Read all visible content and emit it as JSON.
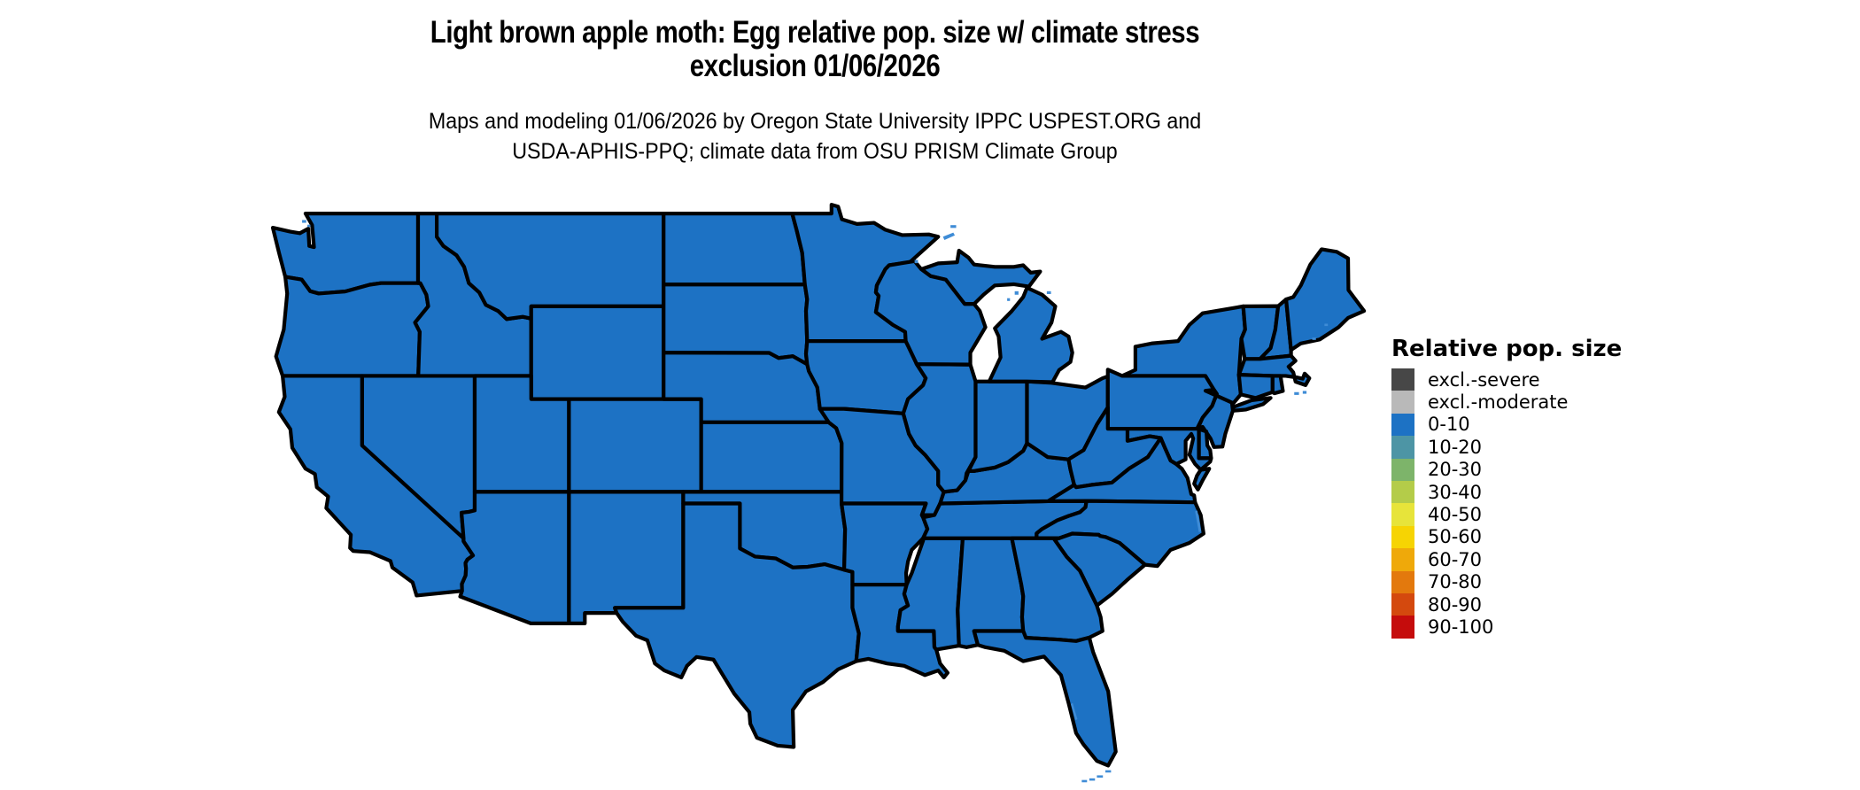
{
  "title": {
    "line1": "Light brown apple moth: Egg relative pop. size w/ climate stress",
    "line2": "exclusion 01/06/2026"
  },
  "subtitle": {
    "line1": "Maps and modeling 01/06/2026 by Oregon State University IPPC USPEST.ORG and",
    "line2": "USDA-APHIS-PPQ; climate data from OSU PRISM Climate Group"
  },
  "legend": {
    "title": "Relative pop. size",
    "items": [
      {
        "label": "excl.-severe",
        "color": "#474747"
      },
      {
        "label": "excl.-moderate",
        "color": "#b9b9b9"
      },
      {
        "label": "0-10",
        "color": "#1d72c4"
      },
      {
        "label": "10-20",
        "color": "#4d95a5"
      },
      {
        "label": "20-30",
        "color": "#7db46a"
      },
      {
        "label": "30-40",
        "color": "#b4cc49"
      },
      {
        "label": "40-50",
        "color": "#e7e43a"
      },
      {
        "label": "50-60",
        "color": "#f6d403"
      },
      {
        "label": "60-70",
        "color": "#efa90a"
      },
      {
        "label": "70-80",
        "color": "#e3790d"
      },
      {
        "label": "80-90",
        "color": "#d4490e"
      },
      {
        "label": "90-100",
        "color": "#c50c0c"
      }
    ]
  },
  "map": {
    "region": "Continental United States",
    "current_category": "0-10",
    "state_fill": "#1d72c4",
    "border_color": "#000000",
    "water_feature_color": "#3f8cd6",
    "background": "#ffffff"
  }
}
